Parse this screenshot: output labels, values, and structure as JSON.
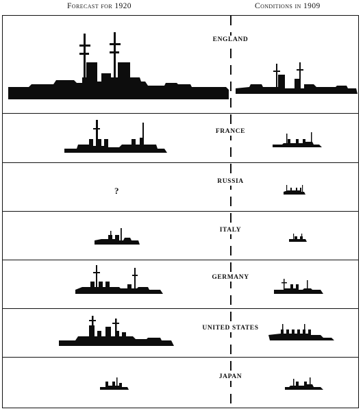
{
  "headers": {
    "left": "Forecast for 1920",
    "right": "Conditions in 1909"
  },
  "rows": [
    {
      "country": "ENGLAND"
    },
    {
      "country": "FRANCE"
    },
    {
      "country": "RUSSIA",
      "forecast_marker": "?"
    },
    {
      "country": "ITALY"
    },
    {
      "country": "GERMANY"
    },
    {
      "country": "UNITED STATES"
    },
    {
      "country": "JAPAN"
    }
  ]
}
